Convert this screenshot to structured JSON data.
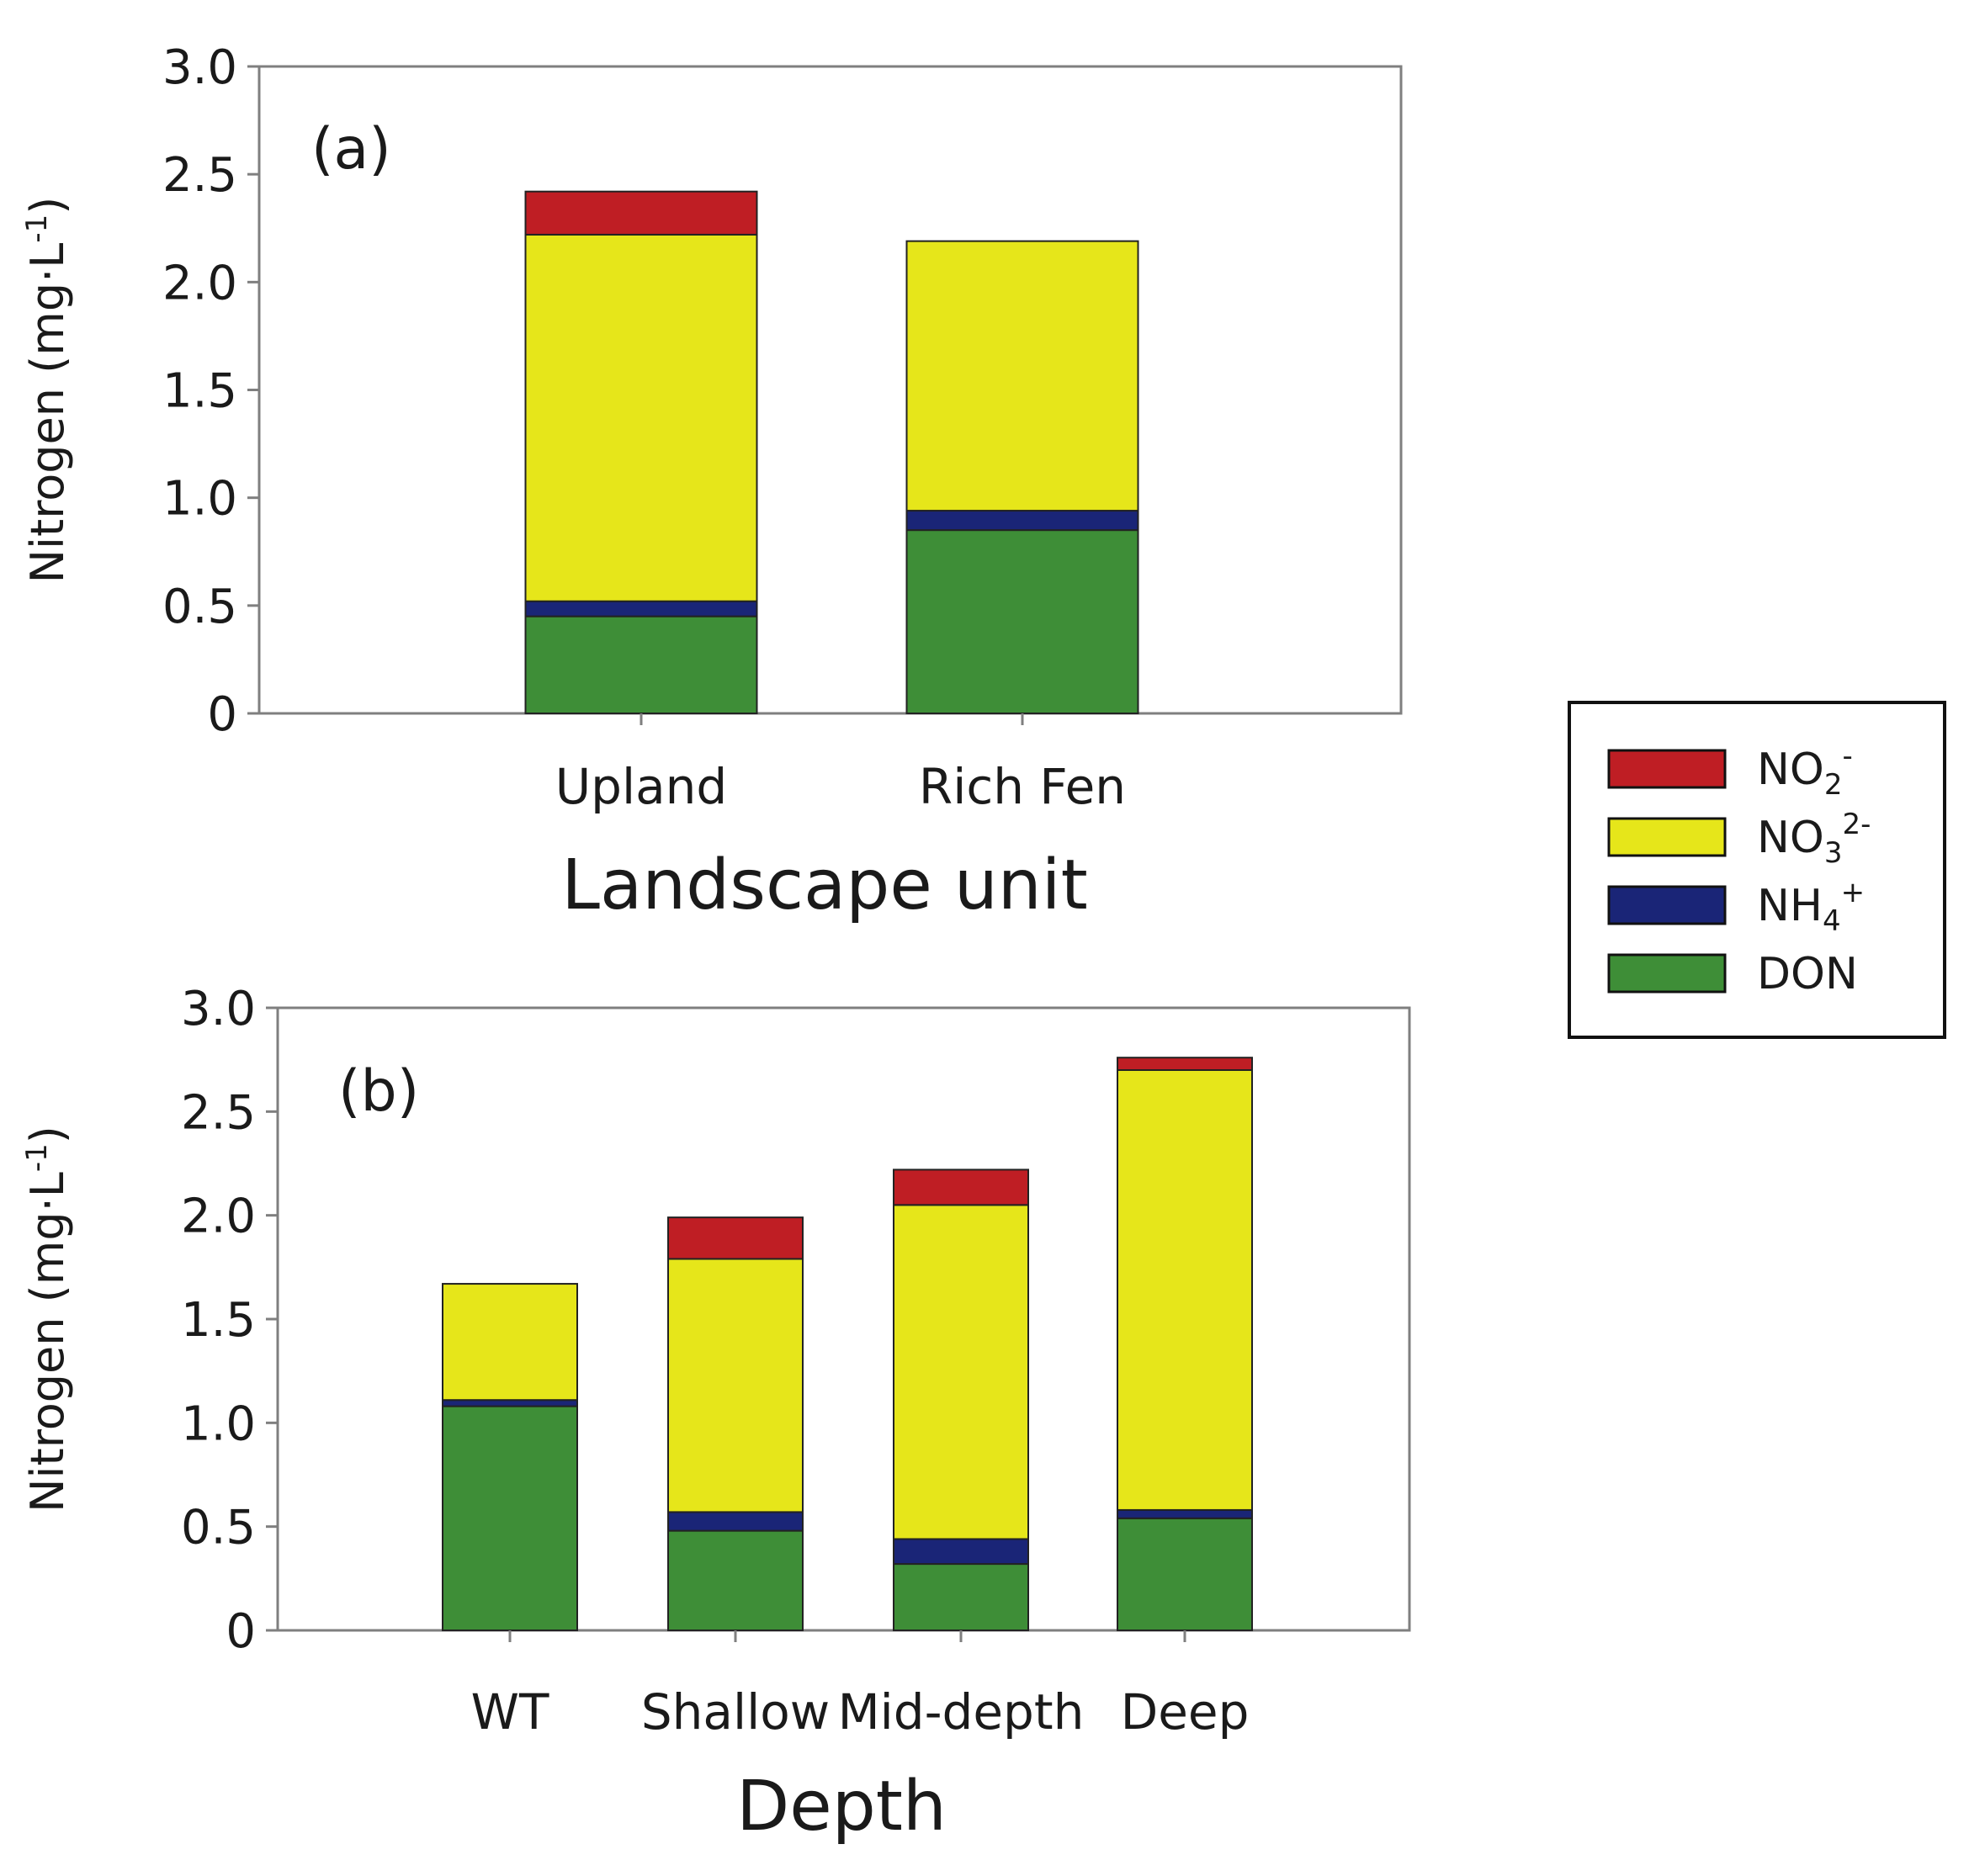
{
  "colors": {
    "DON": "#3e8e37",
    "NH4": "#1a2577",
    "NO3": "#e6e61a",
    "NO2": "#bf1e24",
    "axis": "#7f7f7f",
    "outline": "#222222"
  },
  "legend": {
    "entries": [
      {
        "key": "NO2",
        "base": "NO",
        "sub": "2",
        "sup": "-"
      },
      {
        "key": "NO3",
        "base": "NO",
        "sub": "3",
        "sup": "2-"
      },
      {
        "key": "NH4",
        "base": "NH",
        "sub": "4",
        "sup": "+"
      },
      {
        "key": "DON",
        "base": "DON",
        "sub": "",
        "sup": ""
      }
    ]
  },
  "chart_data": [
    {
      "type": "bar",
      "stacked": true,
      "panel_label": "(a)",
      "xlabel": "Landscape unit",
      "ylabel": {
        "main": "Nitrogen (mg·L",
        "sup": "-1",
        "close": ")"
      },
      "ylim": [
        0,
        3.0
      ],
      "yticks": [
        "0",
        "0.5",
        "1.0",
        "1.5",
        "2.0",
        "2.5",
        "3.0"
      ],
      "categories": [
        "Upland",
        "Rich Fen"
      ],
      "series": [
        {
          "name": "DON",
          "values": [
            0.45,
            0.85
          ]
        },
        {
          "name": "NH4",
          "values": [
            0.07,
            0.09
          ]
        },
        {
          "name": "NO3",
          "values": [
            1.7,
            1.25
          ]
        },
        {
          "name": "NO2",
          "values": [
            0.2,
            0.0
          ]
        }
      ]
    },
    {
      "type": "bar",
      "stacked": true,
      "panel_label": "(b)",
      "xlabel": "Depth",
      "ylabel": {
        "main": "Nitrogen (mg·L",
        "sup": "-1",
        "close": ")"
      },
      "ylim": [
        0,
        3.0
      ],
      "yticks": [
        "0",
        "0.5",
        "1.0",
        "1.5",
        "2.0",
        "2.5",
        "3.0"
      ],
      "categories": [
        "WT",
        "Shallow",
        "Mid-depth",
        "Deep"
      ],
      "series": [
        {
          "name": "DON",
          "values": [
            1.08,
            0.48,
            0.32,
            0.54
          ]
        },
        {
          "name": "NH4",
          "values": [
            0.03,
            0.09,
            0.12,
            0.04
          ]
        },
        {
          "name": "NO3",
          "values": [
            0.56,
            1.22,
            1.61,
            2.12
          ]
        },
        {
          "name": "NO2",
          "values": [
            0.0,
            0.2,
            0.17,
            0.06
          ]
        }
      ]
    }
  ]
}
